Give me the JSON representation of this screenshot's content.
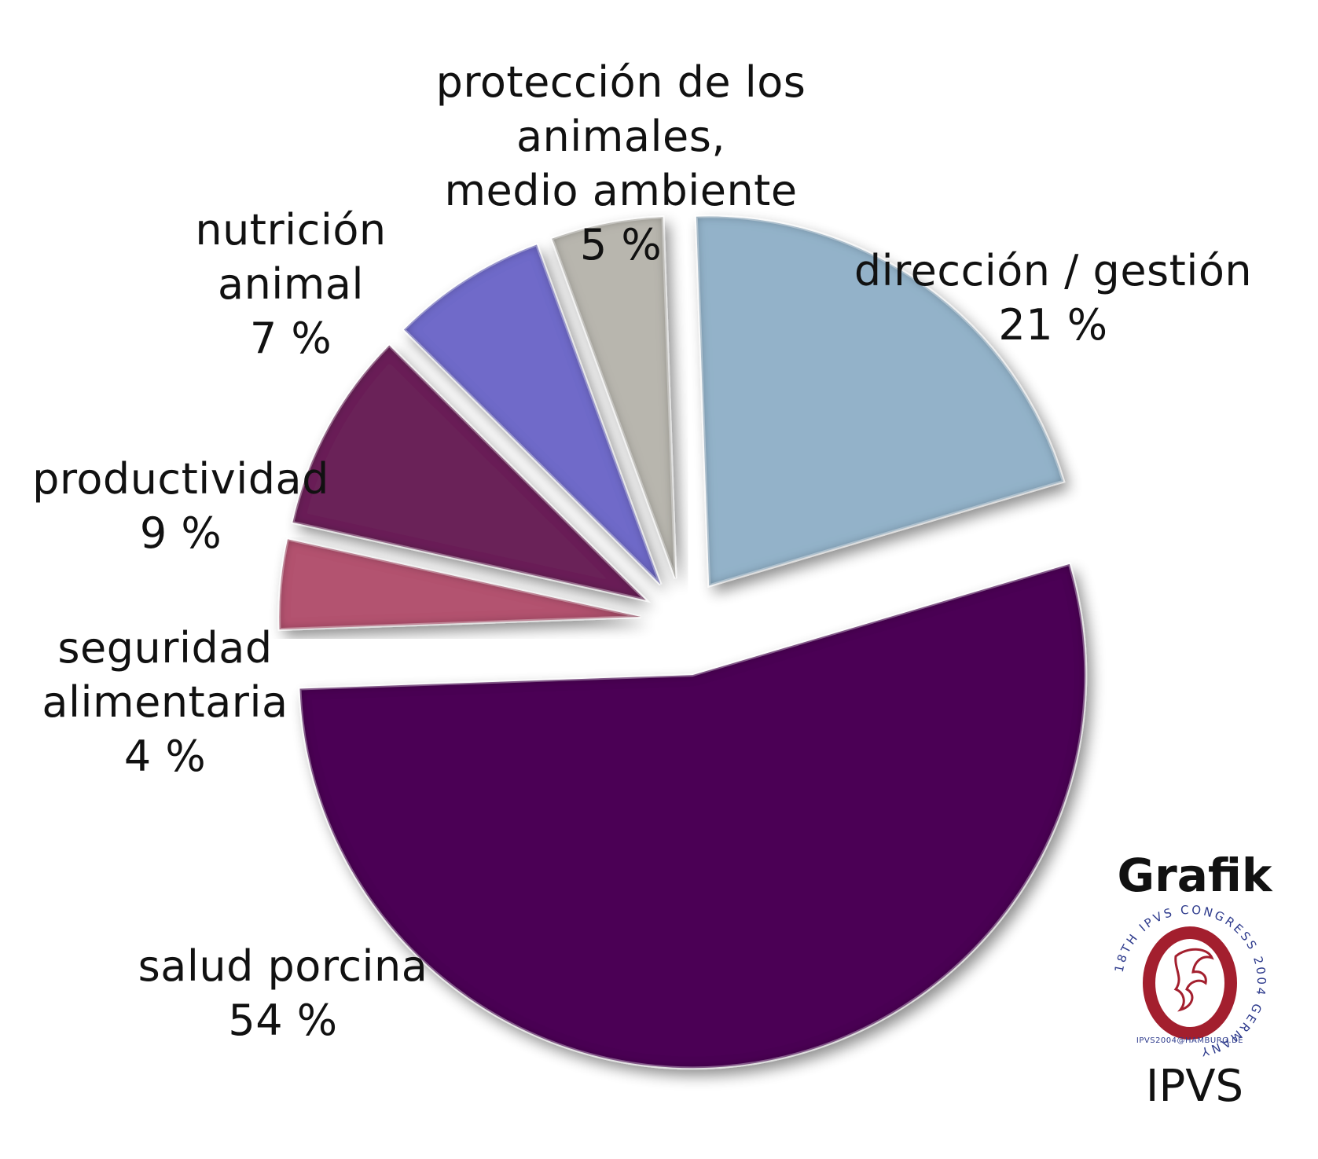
{
  "chart_data": {
    "type": "pie",
    "title": "",
    "slices": [
      {
        "label": "dirección / gestión",
        "value": 21,
        "value_label": "21 %",
        "color": "#93B2C9"
      },
      {
        "label": "salud porcina",
        "value": 54,
        "value_label": "54 %",
        "color": "#4B0055"
      },
      {
        "label": "seguridad alimentaria",
        "value": 4,
        "value_label": "4 %",
        "color": "#B35270"
      },
      {
        "label": "productividad",
        "value": 9,
        "value_label": "9 %",
        "color": "#6B2458"
      },
      {
        "label": "nutrición animal",
        "value": 7,
        "value_label": "7 %",
        "color": "#6F6BC9"
      },
      {
        "label": "protección de los animales, medio ambiente",
        "value": 5,
        "value_label": "5 %",
        "color": "#B8B6AE"
      }
    ],
    "exploded": true
  },
  "labels": {
    "direccion": [
      "dirección / gestión",
      "21 %"
    ],
    "salud": [
      "salud porcina",
      "54 %"
    ],
    "seguridad": [
      "seguridad",
      "alimentaria",
      "4 %"
    ],
    "productividad": [
      "productividad",
      "9 %"
    ],
    "nutricion": [
      "nutrición",
      "animal",
      "7 %"
    ],
    "proteccion": [
      "protección de los",
      "animales,",
      "medio ambiente",
      "5 %"
    ]
  },
  "branding": {
    "top_text": "Grafik",
    "bottom_text": "IPVS",
    "seal_ring_text": "18TH IPVS CONGRESS 2004 GERMANY",
    "seal_bottom_text": "IPVS2004@HAMBURG.DE",
    "seal_color": "#A31F2E",
    "seal_ring_color": "#2D3A8C"
  }
}
